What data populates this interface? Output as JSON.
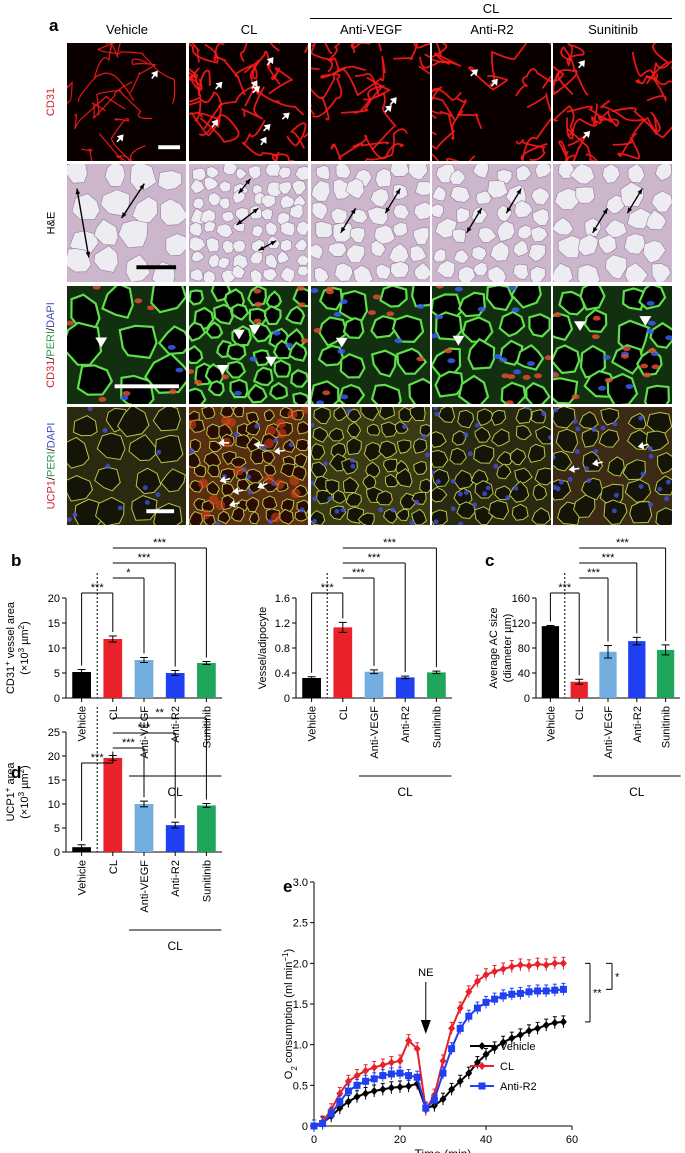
{
  "panel_a": {
    "letter": "a",
    "columns": [
      "Vehicle",
      "CL",
      "Anti-VEGF",
      "Anti-R2",
      "Sunitinib"
    ],
    "group_header": "CL",
    "rows": [
      {
        "parts": [
          {
            "t": "CD31",
            "c": "#d2232a"
          }
        ]
      },
      {
        "parts": [
          {
            "t": "H&E",
            "c": "#000000"
          }
        ]
      },
      {
        "parts": [
          {
            "t": "CD31",
            "c": "#d2232a"
          },
          {
            "t": "/",
            "c": "#000000"
          },
          {
            "t": "PERI",
            "c": "#2e9a48"
          },
          {
            "t": "/",
            "c": "#000000"
          },
          {
            "t": "DAPI",
            "c": "#3a4ab8"
          }
        ]
      },
      {
        "parts": [
          {
            "t": "UCP1",
            "c": "#d2232a"
          },
          {
            "t": "/",
            "c": "#000000"
          },
          {
            "t": "PERI",
            "c": "#2e9a48"
          },
          {
            "t": "/",
            "c": "#000000"
          },
          {
            "t": "DAPI",
            "c": "#3a4ab8"
          }
        ]
      }
    ]
  },
  "chart_data": [
    {
      "panel": "b",
      "type": "bar",
      "categories": [
        "Vehicle",
        "CL",
        "Anti-VEGF",
        "Anti-R2",
        "Sunitinib"
      ],
      "values": [
        5.2,
        11.8,
        7.6,
        5.0,
        7.0
      ],
      "errors": [
        0.5,
        0.6,
        0.5,
        0.5,
        0.3
      ],
      "colors": [
        "#000000",
        "#e8212b",
        "#74aee0",
        "#1f3ff0",
        "#20a65a"
      ],
      "ylabel_lines": [
        "CD31+ vessel area",
        "(×10³ µm²)"
      ],
      "ylim": [
        0,
        20
      ],
      "yticks": [
        0,
        5,
        10,
        15,
        20
      ],
      "group_label": "CL",
      "significance": [
        "***",
        "*",
        "***",
        "***"
      ]
    },
    {
      "panel": "b2",
      "type": "bar",
      "categories": [
        "Vehicle",
        "CL",
        "Anti-VEGF",
        "Anti-R2",
        "Sunitinib"
      ],
      "values": [
        0.32,
        1.13,
        0.42,
        0.33,
        0.41
      ],
      "errors": [
        0.02,
        0.08,
        0.03,
        0.02,
        0.02
      ],
      "colors": [
        "#000000",
        "#e8212b",
        "#74aee0",
        "#1f3ff0",
        "#20a65a"
      ],
      "ylabel_lines": [
        "Vessel/adipocyte"
      ],
      "ylim": [
        0,
        1.6
      ],
      "yticks": [
        "0",
        "0.4",
        "0.8",
        "1.2",
        "1.6"
      ],
      "group_label": "CL",
      "significance": [
        "***",
        "***",
        "***",
        "***"
      ]
    },
    {
      "panel": "c",
      "type": "bar",
      "categories": [
        "Vehicle",
        "CL",
        "Anti-VEGF",
        "Anti-R2",
        "Sunitinib"
      ],
      "values": [
        115,
        26,
        74,
        91,
        77
      ],
      "errors": [
        1,
        4,
        10,
        6,
        8
      ],
      "colors": [
        "#000000",
        "#e8212b",
        "#74aee0",
        "#1f3ff0",
        "#20a65a"
      ],
      "ylabel_lines": [
        "Average AC size",
        "(diameter µm)"
      ],
      "ylim": [
        0,
        160
      ],
      "yticks": [
        0,
        40,
        80,
        120,
        160
      ],
      "group_label": "CL",
      "significance": [
        "***",
        "***",
        "***",
        "***"
      ]
    },
    {
      "panel": "d",
      "type": "bar",
      "categories": [
        "Vehicle",
        "CL",
        "Anti-VEGF",
        "Anti-R2",
        "Sunitinib"
      ],
      "values": [
        1.0,
        19.6,
        10.0,
        5.6,
        9.7
      ],
      "errors": [
        0.5,
        0.5,
        0.6,
        0.6,
        0.4
      ],
      "colors": [
        "#000000",
        "#e8212b",
        "#74aee0",
        "#1f3ff0",
        "#20a65a"
      ],
      "ylabel_lines": [
        "UCP1+ area",
        "(×10³ µm²)"
      ],
      "ylim": [
        0,
        25
      ],
      "yticks": [
        0,
        5,
        10,
        15,
        20,
        25
      ],
      "group_label": "CL",
      "significance": [
        "***",
        "***",
        "***",
        "**"
      ]
    },
    {
      "panel": "e",
      "type": "line",
      "xlabel": "Time (min)",
      "ylabel": "O2 consumption (ml min−1)",
      "xlim": [
        0,
        60
      ],
      "ylim": [
        0,
        3.0
      ],
      "xticks": [
        0,
        20,
        40,
        60
      ],
      "yticks": [
        "0",
        "0.5",
        "1.0",
        "1.5",
        "2.0",
        "2.5",
        "3.0"
      ],
      "annotation": "NE",
      "annotation_x": 26,
      "significance": [
        "**",
        "*"
      ],
      "series": [
        {
          "name": "Vehicle",
          "color": "#000000",
          "marker": "diamond",
          "x": [
            0,
            2,
            4,
            6,
            8,
            10,
            12,
            14,
            16,
            18,
            20,
            22,
            24,
            26,
            28,
            30,
            32,
            34,
            36,
            38,
            40,
            42,
            44,
            46,
            48,
            50,
            52,
            54,
            56,
            58
          ],
          "y": [
            0,
            0.04,
            0.12,
            0.22,
            0.3,
            0.36,
            0.4,
            0.43,
            0.45,
            0.47,
            0.48,
            0.49,
            0.52,
            0.22,
            0.25,
            0.33,
            0.45,
            0.55,
            0.65,
            0.78,
            0.88,
            0.96,
            1.03,
            1.08,
            1.12,
            1.17,
            1.2,
            1.24,
            1.27,
            1.28
          ]
        },
        {
          "name": "CL",
          "color": "#e8212b",
          "marker": "diamond",
          "x": [
            0,
            2,
            4,
            6,
            8,
            10,
            12,
            14,
            16,
            18,
            20,
            22,
            24,
            26,
            28,
            30,
            32,
            34,
            36,
            38,
            40,
            42,
            44,
            46,
            48,
            50,
            52,
            54,
            56,
            58
          ],
          "y": [
            0,
            0.05,
            0.2,
            0.4,
            0.55,
            0.62,
            0.68,
            0.72,
            0.75,
            0.78,
            0.8,
            1.05,
            0.95,
            0.2,
            0.38,
            0.8,
            1.2,
            1.45,
            1.65,
            1.78,
            1.86,
            1.9,
            1.93,
            1.96,
            1.98,
            1.97,
            1.99,
            1.98,
            2.0,
            2.0
          ]
        },
        {
          "name": "Anti-R2",
          "color": "#1f3ff0",
          "marker": "square",
          "x": [
            0,
            2,
            4,
            6,
            8,
            10,
            12,
            14,
            16,
            18,
            20,
            22,
            24,
            26,
            28,
            30,
            32,
            34,
            36,
            38,
            40,
            42,
            44,
            46,
            48,
            50,
            52,
            54,
            56,
            58
          ],
          "y": [
            0,
            0.03,
            0.15,
            0.3,
            0.43,
            0.5,
            0.55,
            0.58,
            0.62,
            0.64,
            0.65,
            0.62,
            0.6,
            0.22,
            0.32,
            0.65,
            0.95,
            1.2,
            1.35,
            1.45,
            1.52,
            1.56,
            1.6,
            1.62,
            1.63,
            1.65,
            1.66,
            1.66,
            1.67,
            1.68
          ]
        }
      ]
    }
  ]
}
